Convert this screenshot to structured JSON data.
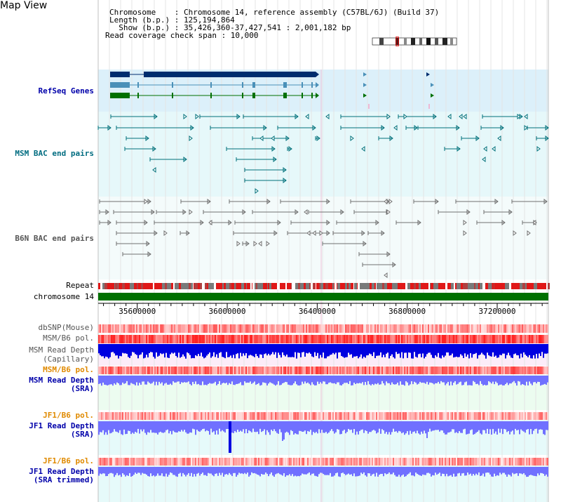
{
  "header": {
    "title": "Map View",
    "lines": [
      "Chromosome    : Chromosome 14, reference assembly (C57BL/6J) (Build 37)",
      "Length (b.p.) : 125,194,864",
      "  Show (b.p.) : 35,426,360-37,427,541 : 2,001,182 bp",
      "Read coverage check span : 10,000"
    ]
  },
  "tracks": {
    "refseq": "RefSeq Genes",
    "msm_bac": "MSM BAC end pairs",
    "b6n_bac": "B6N BAC end pairs",
    "repeat": "Repeat",
    "chromosome": "chromosome 14",
    "dbsnp": "dbSNP(Mouse)",
    "msm_b6_pol_1": "MSM/B6 pol.",
    "msm_depth_cap_1": "MSM Read Depth",
    "msm_depth_cap_2": "(Capillary)",
    "msm_b6_pol_2": "MSM/B6 pol.",
    "msm_depth_sra_1": "MSM Read Depth",
    "msm_depth_sra_2": "(SRA)",
    "jf1_b6_pol_1": "JF1/B6 pol.",
    "jf1_depth_sra_1": "JF1 Read Depth",
    "jf1_depth_sra_2": "(SRA)",
    "jf1_b6_pol_2": "JF1/B6 pol.",
    "jf1_depth_trim_1": "JF1 Read Depth",
    "jf1_depth_trim_2": "(SRA trimmed)"
  },
  "axis": {
    "ticks": [
      "35600000",
      "36000000",
      "36400000",
      "36800000",
      "37200000"
    ],
    "range": [
      35426360,
      37427541
    ]
  },
  "colors": {
    "refseq_bg": "#dcf0fa",
    "bac_bg": "#e6f8fa",
    "depth_bg_pink": "#fcecf8",
    "depth_bg_green": "#ecfcf0",
    "chromosome_bar": "#007000",
    "gene_dark": "#002d6e",
    "gene_mid": "#4a90b8",
    "gene_green": "#007000",
    "msm_bac": "#00707a",
    "b6n_bac": "#707070",
    "depth_blue": "#0000e0",
    "depth_light": "#7070ff"
  }
}
